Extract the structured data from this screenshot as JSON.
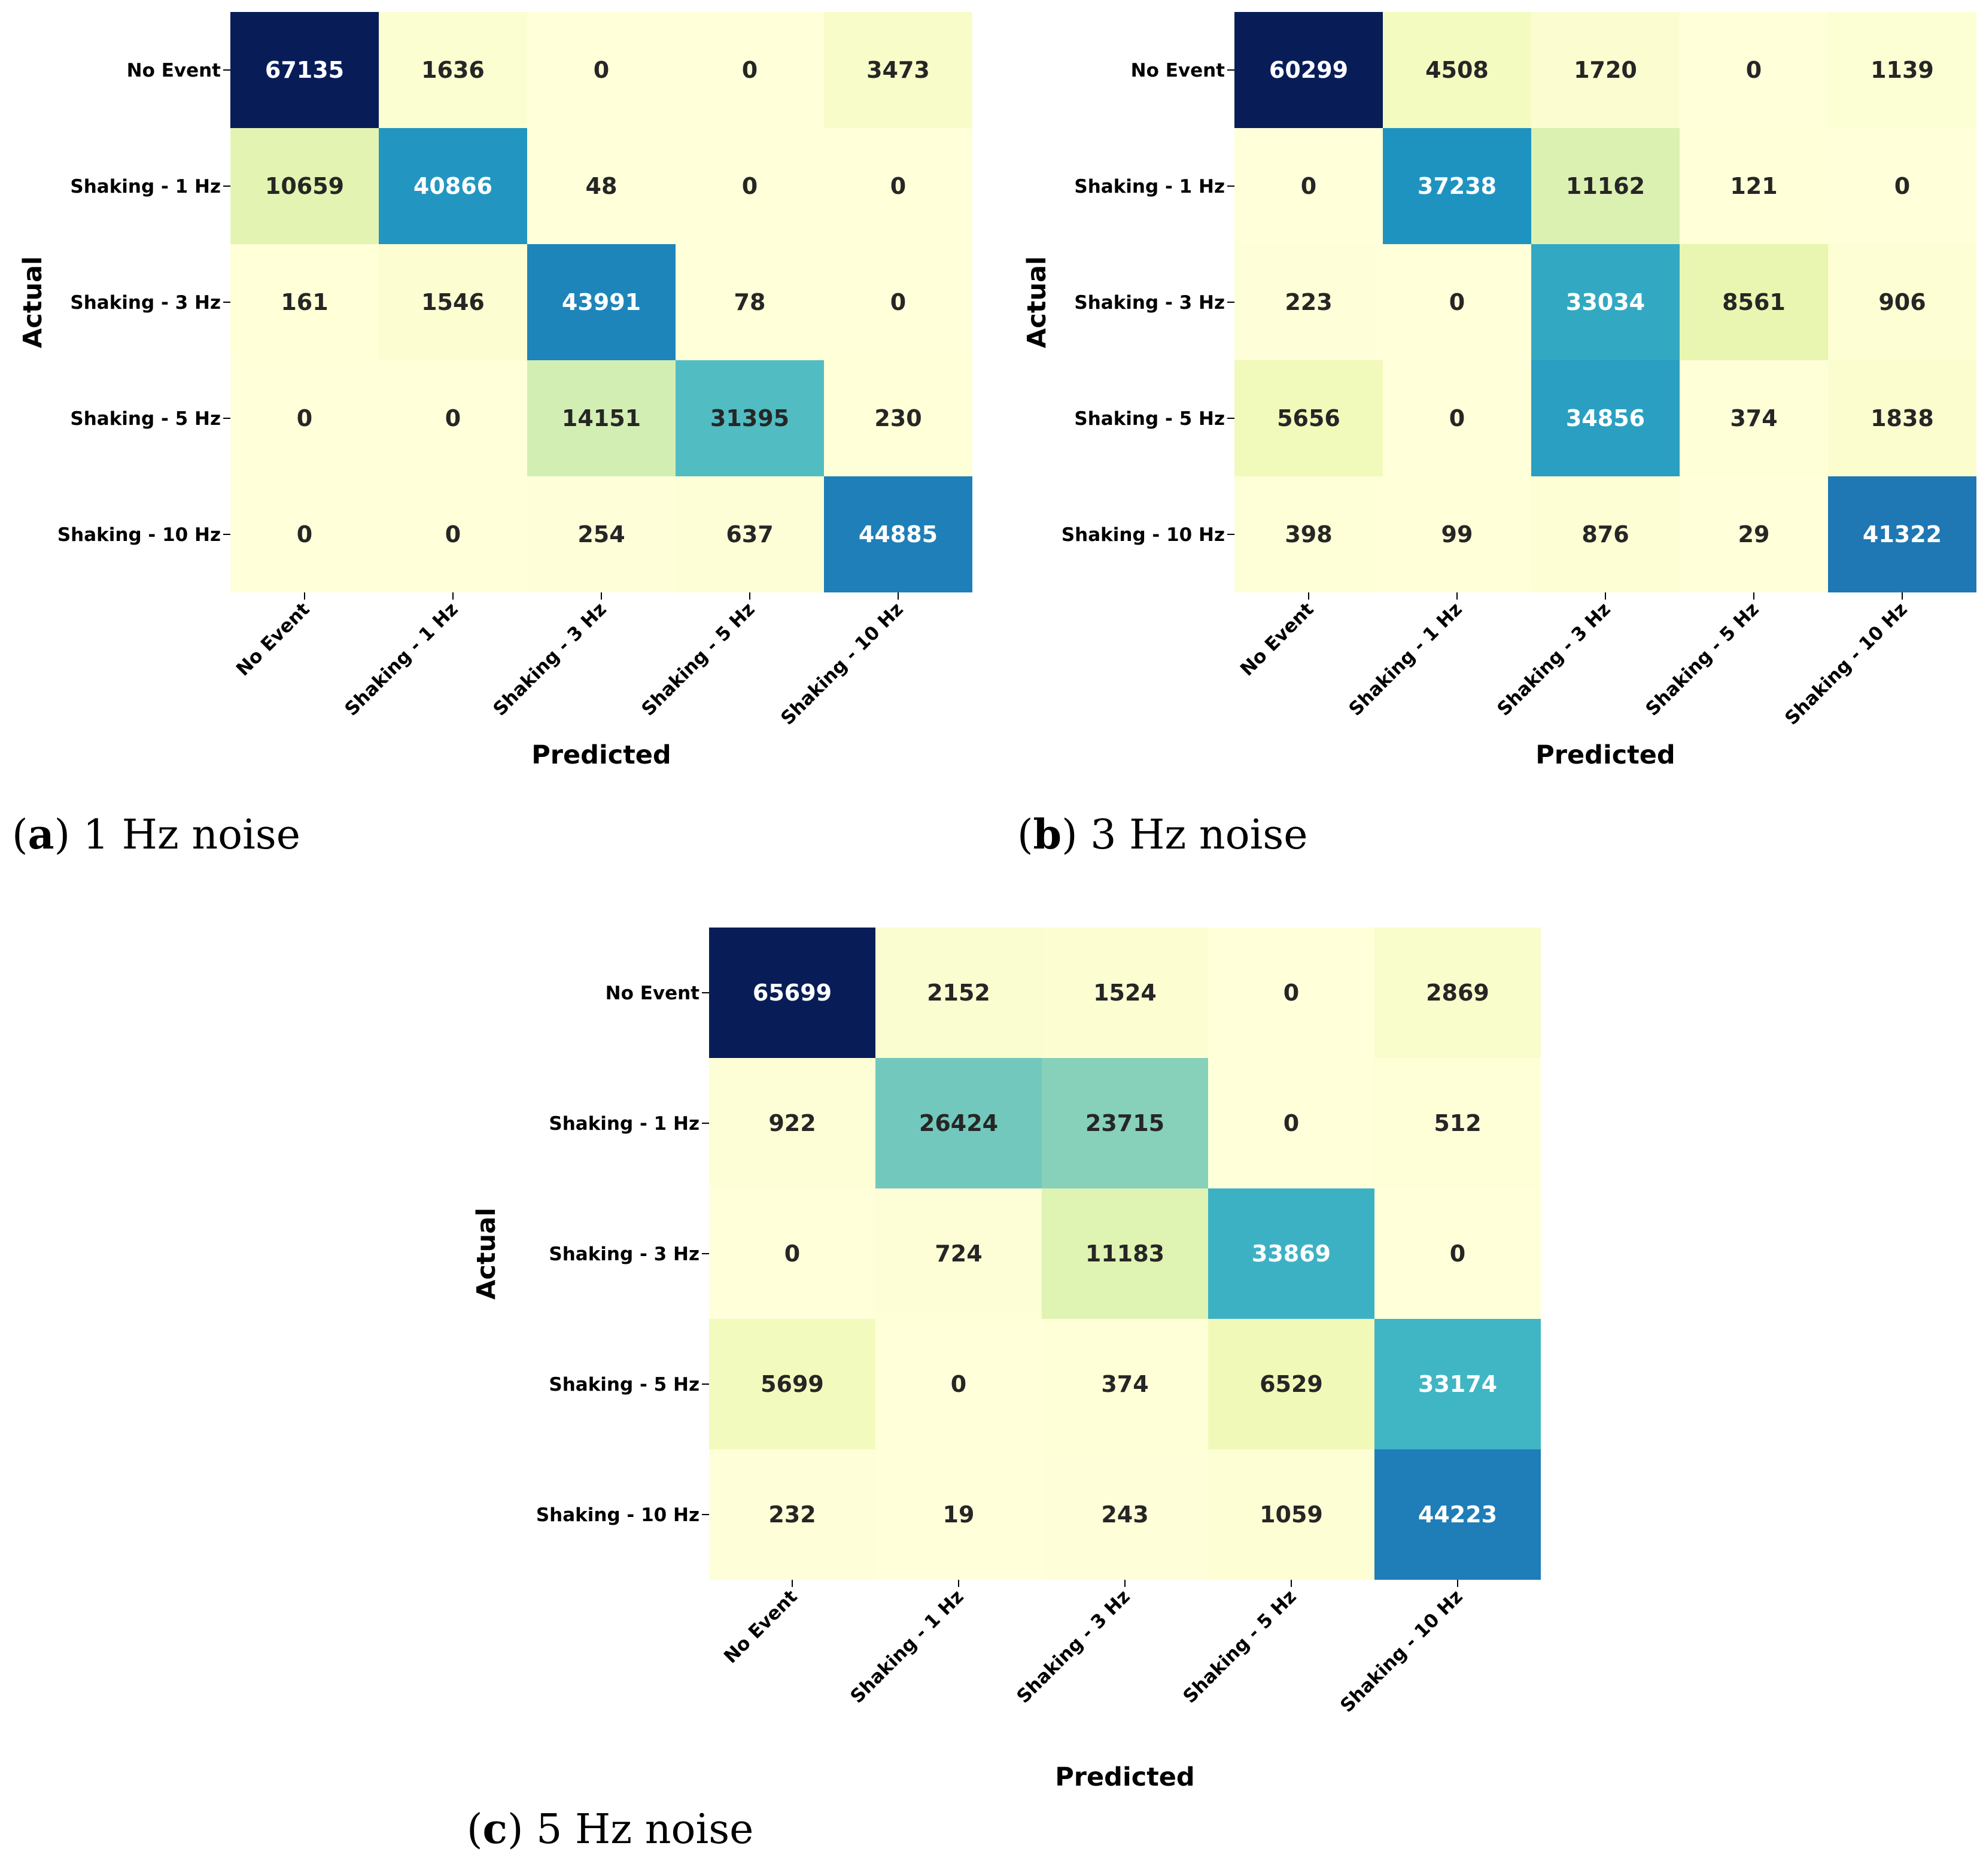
{
  "chart_data": [
    {
      "type": "heatmap",
      "caption_letter": "a",
      "caption_text": "1 Hz noise",
      "xlabel": "Predicted",
      "ylabel": "Actual",
      "x_categories": [
        "No Event",
        "Shaking - 1 Hz",
        "Shaking - 3 Hz",
        "Shaking - 5 Hz",
        "Shaking - 10 Hz"
      ],
      "y_categories": [
        "No Event",
        "Shaking - 1 Hz",
        "Shaking - 3 Hz",
        "Shaking - 5 Hz",
        "Shaking - 10 Hz"
      ],
      "values": [
        [
          67135,
          1636,
          0,
          0,
          3473
        ],
        [
          10659,
          40866,
          48,
          0,
          0
        ],
        [
          161,
          1546,
          43991,
          78,
          0
        ],
        [
          0,
          0,
          14151,
          31395,
          230
        ],
        [
          0,
          0,
          254,
          637,
          44885
        ]
      ],
      "colormap": "YlGnBu",
      "colorbar": false
    },
    {
      "type": "heatmap",
      "caption_letter": "b",
      "caption_text": "3 Hz noise",
      "xlabel": "Predicted",
      "ylabel": "Actual",
      "x_categories": [
        "No Event",
        "Shaking - 1 Hz",
        "Shaking - 3 Hz",
        "Shaking - 5 Hz",
        "Shaking - 10 Hz"
      ],
      "y_categories": [
        "No Event",
        "Shaking - 1 Hz",
        "Shaking - 3 Hz",
        "Shaking - 5 Hz",
        "Shaking - 10 Hz"
      ],
      "values": [
        [
          60299,
          4508,
          1720,
          0,
          1139
        ],
        [
          0,
          37238,
          11162,
          121,
          0
        ],
        [
          223,
          0,
          33034,
          8561,
          906
        ],
        [
          5656,
          0,
          34856,
          374,
          1838
        ],
        [
          398,
          99,
          876,
          29,
          41322
        ]
      ],
      "colormap": "YlGnBu",
      "colorbar": false
    },
    {
      "type": "heatmap",
      "caption_letter": "c",
      "caption_text": "5 Hz noise",
      "xlabel": "Predicted",
      "ylabel": "Actual",
      "x_categories": [
        "No Event",
        "Shaking - 1 Hz",
        "Shaking - 3 Hz",
        "Shaking - 5 Hz",
        "Shaking - 10 Hz"
      ],
      "y_categories": [
        "No Event",
        "Shaking - 1 Hz",
        "Shaking - 3 Hz",
        "Shaking - 5 Hz",
        "Shaking - 10 Hz"
      ],
      "values": [
        [
          65699,
          2152,
          1524,
          0,
          2869
        ],
        [
          922,
          26424,
          23715,
          0,
          512
        ],
        [
          0,
          724,
          11183,
          33869,
          0
        ],
        [
          5699,
          0,
          374,
          6529,
          33174
        ],
        [
          232,
          19,
          243,
          1059,
          44223
        ]
      ],
      "colormap": "YlGnBu",
      "colorbar": false
    }
  ]
}
